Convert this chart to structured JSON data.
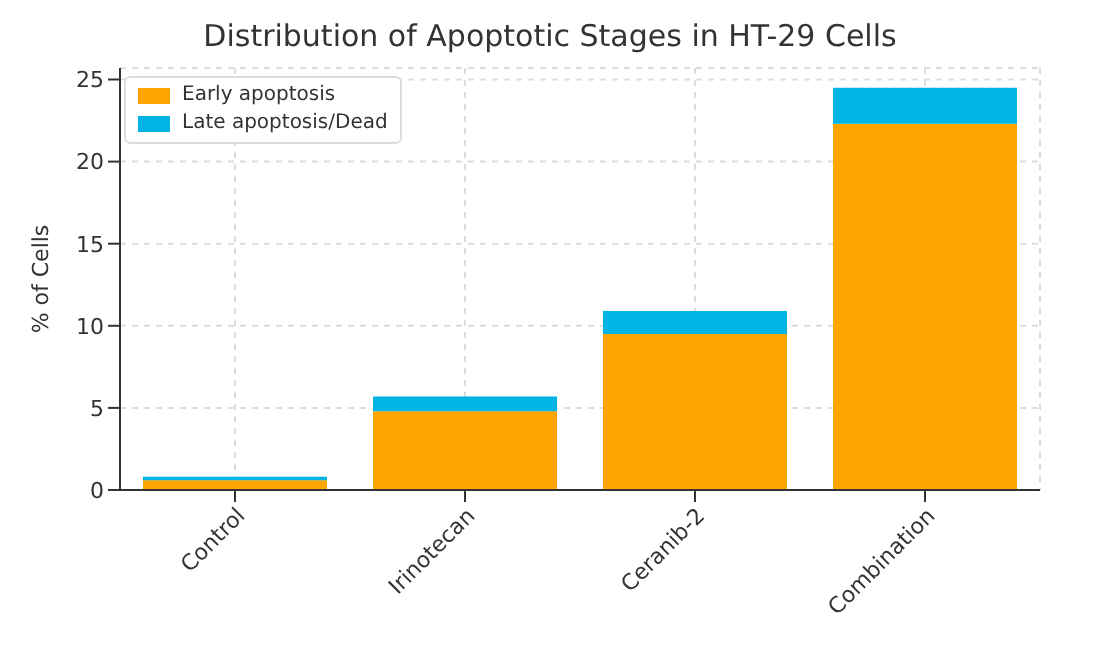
{
  "chart_data": {
    "type": "bar",
    "title": "Distribution of Apoptotic Stages in HT-29 Cells",
    "ylabel": "% of Cells",
    "categories": [
      "Control",
      "Irinotecan",
      "Ceranib-2",
      "Combination"
    ],
    "series": [
      {
        "name": "Early apoptosis",
        "color": "#ffa500",
        "values": [
          0.6,
          4.8,
          9.5,
          22.3
        ]
      },
      {
        "name": "Late apoptosis/Dead",
        "color": "#00b4e6",
        "values": [
          0.2,
          0.9,
          1.4,
          2.2
        ]
      }
    ],
    "stacked": true,
    "ylim": [
      0,
      25.7
    ],
    "yticks": [
      0,
      5,
      10,
      15,
      20,
      25
    ],
    "grid": true,
    "legend": "top left"
  }
}
